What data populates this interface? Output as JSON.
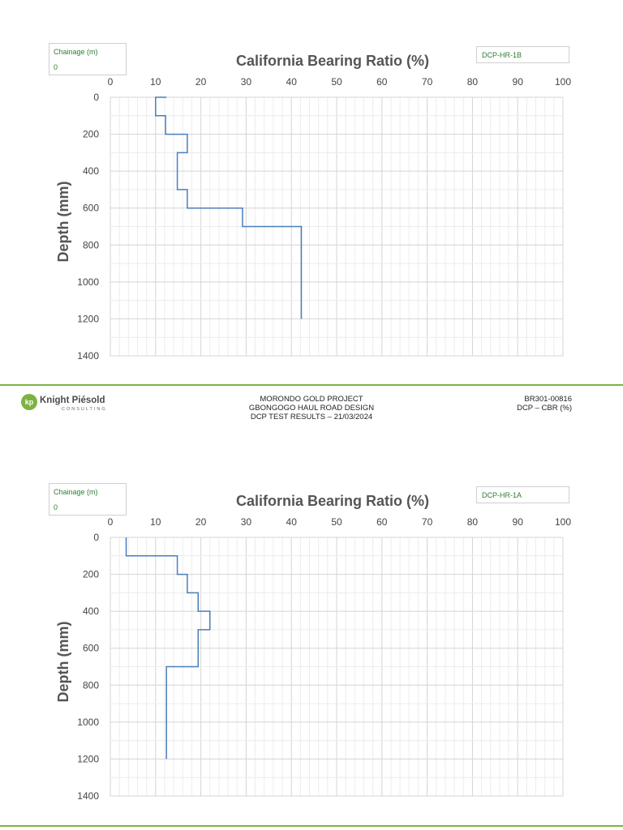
{
  "chart_data": [
    {
      "type": "line",
      "title": "California Bearing Ratio (%)",
      "ylabel": "Depth (mm)",
      "xlabel": "",
      "x_ticks": [
        0,
        10,
        20,
        30,
        40,
        50,
        60,
        70,
        80,
        90,
        100
      ],
      "y_ticks": [
        0,
        200,
        400,
        600,
        800,
        1000,
        1200,
        1400
      ],
      "xlim": [
        0,
        100
      ],
      "ylim": [
        0,
        1400
      ],
      "y_inverted": true,
      "x_axis_position": "top",
      "grid": true,
      "line_color": "#4a7ebb",
      "chainage_label": "Chainage (m)",
      "chainage_value": "0",
      "test_id": "DCP-HR-1B",
      "series": [
        {
          "x": [
            12.4,
            10,
            10,
            12.2,
            12.2,
            17,
            17,
            14.8,
            14.8,
            17,
            17,
            29.2,
            29.2,
            42.2,
            42.2
          ],
          "y": [
            0,
            0,
            100,
            100,
            200,
            200,
            300,
            300,
            500,
            500,
            600,
            600,
            700,
            700,
            1200
          ]
        }
      ]
    },
    {
      "type": "line",
      "title": "California Bearing Ratio (%)",
      "ylabel": "Depth (mm)",
      "xlabel": "",
      "x_ticks": [
        0,
        10,
        20,
        30,
        40,
        50,
        60,
        70,
        80,
        90,
        100
      ],
      "y_ticks": [
        0,
        200,
        400,
        600,
        800,
        1000,
        1200,
        1400
      ],
      "xlim": [
        0,
        100
      ],
      "ylim": [
        0,
        1400
      ],
      "y_inverted": true,
      "x_axis_position": "top",
      "grid": true,
      "line_color": "#4a7ebb",
      "chainage_label": "Chainage (m)",
      "chainage_value": "0",
      "test_id": "DCP-HR-1A",
      "series": [
        {
          "x": [
            3.5,
            3.5,
            14.8,
            14.8,
            17,
            17,
            19.4,
            19.4,
            22,
            22,
            19.4,
            19.4,
            12.4,
            12.4
          ],
          "y": [
            0,
            100,
            100,
            200,
            200,
            300,
            300,
            400,
            400,
            500,
            500,
            700,
            700,
            1200
          ]
        }
      ]
    }
  ],
  "footer": {
    "logo_name": "Knight Piésold",
    "logo_sub": "CONSULTING",
    "logo_mark": "kp",
    "brand_color": "#7cb342",
    "project_line1": "MORONDO GOLD PROJECT",
    "project_line2": "GBONGOGO HAUL ROAD DESIGN",
    "project_line3": "DCP TEST RESULTS – 21/03/2024",
    "doc_number": "BR301-00816",
    "doc_subject": "DCP – CBR (%)"
  }
}
